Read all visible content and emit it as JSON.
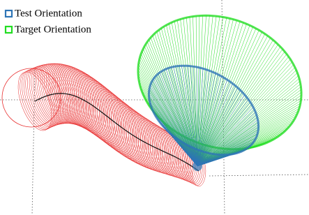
{
  "legend": {
    "items": [
      {
        "label": "Test Orientation",
        "color": "#2e75b6"
      },
      {
        "label": "Target Orientation",
        "color": "#22dd22"
      }
    ]
  }
}
